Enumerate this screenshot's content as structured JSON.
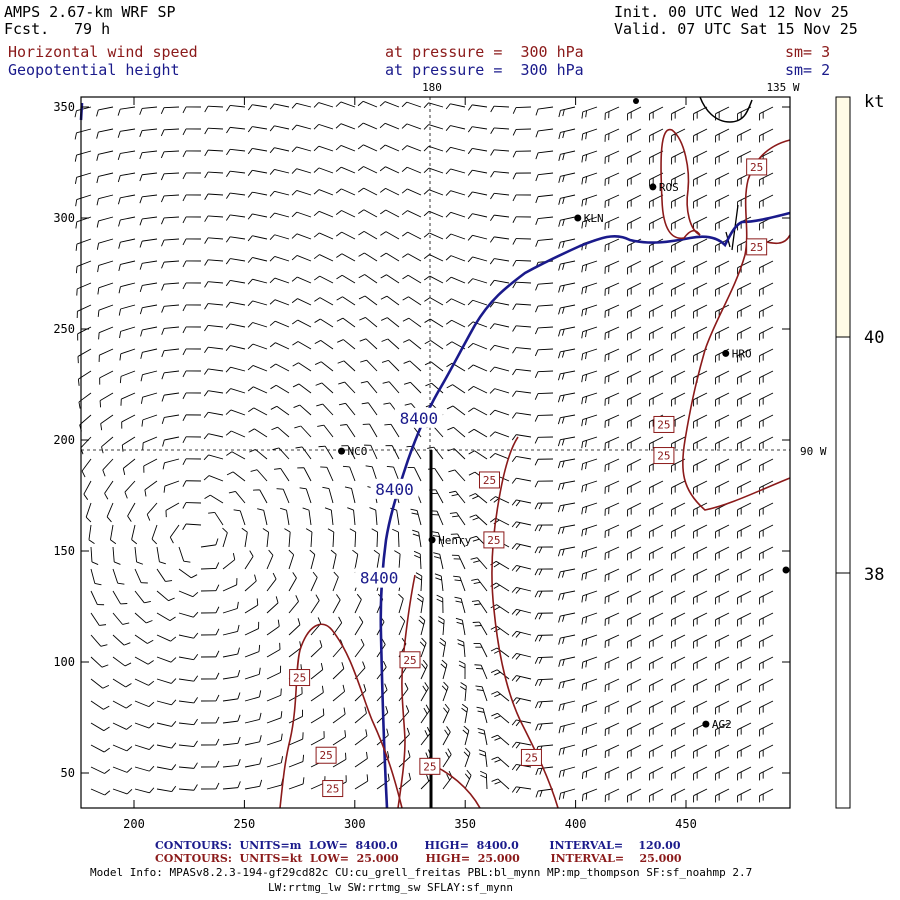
{
  "header": {
    "model": "AMPS 2.67-km WRF SP",
    "fcst_label": "Fcst.",
    "fcst_value": "79 h",
    "init": "Init. 00 UTC Wed 12 Nov 25",
    "valid": "Valid. 07 UTC Sat 15 Nov 25",
    "field1": "Horizontal wind speed",
    "field1_level": "at pressure =  300 hPa",
    "field1_sm": "sm= 3",
    "field2": "Geopotential height",
    "field2_level": "at pressure =  300 hPa",
    "field2_sm": "sm= 2"
  },
  "map": {
    "meridian_label": "180",
    "meridian2_label": "135 W",
    "parallel_label": "90 W",
    "x_ticks": [
      "200",
      "250",
      "300",
      "350",
      "400",
      "450"
    ],
    "y_ticks": [
      "350",
      "300",
      "250",
      "200",
      "150",
      "100",
      "50"
    ],
    "stations": [
      {
        "name": "ROS",
        "gx": 435,
        "gy": 314
      },
      {
        "name": "KLN",
        "gx": 401,
        "gy": 300
      },
      {
        "name": "HRO",
        "gx": 468,
        "gy": 239
      },
      {
        "name": "NCO",
        "gx": 294,
        "gy": 195
      },
      {
        "name": "Henry",
        "gx": 335,
        "gy": 155
      },
      {
        "name": "AG2",
        "gx": 459,
        "gy": 72
      }
    ],
    "height_labels": [
      {
        "text": "8400",
        "gx": 329,
        "gy": 210
      },
      {
        "text": "8400",
        "gx": 318,
        "gy": 178
      },
      {
        "text": "8400",
        "gx": 311,
        "gy": 138
      }
    ],
    "speed_labels": [
      {
        "text": "25",
        "gx": 482,
        "gy": 323
      },
      {
        "text": "25",
        "gx": 482,
        "gy": 287
      },
      {
        "text": "25",
        "gx": 440,
        "gy": 207
      },
      {
        "text": "25",
        "gx": 440,
        "gy": 193
      },
      {
        "text": "25",
        "gx": 361,
        "gy": 182
      },
      {
        "text": "25",
        "gx": 363,
        "gy": 155
      },
      {
        "text": "25",
        "gx": 325,
        "gy": 101
      },
      {
        "text": "25",
        "gx": 275,
        "gy": 93
      },
      {
        "text": "25",
        "gx": 287,
        "gy": 58
      },
      {
        "text": "25",
        "gx": 380,
        "gy": 57
      },
      {
        "text": "25",
        "gx": 334,
        "gy": 53
      },
      {
        "text": "25",
        "gx": 290,
        "gy": 43
      }
    ],
    "colors": {
      "height": "#1a1a8b",
      "speed": "#8b1a1a",
      "coast": "#000000"
    }
  },
  "colorbar": {
    "unit": "kt",
    "labels": [
      "40",
      "38"
    ],
    "fill_color": "#fffbe6"
  },
  "footer": {
    "line1_label": "CONTOURS:  UNITS=m  LOW=  8400.0       HIGH=  8400.0        INTERVAL=    120.00",
    "line2_label": "CONTOURS:  UNITS=kt  LOW=  25.000       HIGH=  25.000        INTERVAL=    25.000",
    "info1": "Model Info: MPASv8.2.3-194-gf29cd82c CU:cu_grell_freitas PBL:bl_mynn MP:mp_thompson SF:sf_noahmp 2.7",
    "info2": "LW:rrtmg_lw SW:rrtmg_sw SFLAY:sf_mynn"
  }
}
